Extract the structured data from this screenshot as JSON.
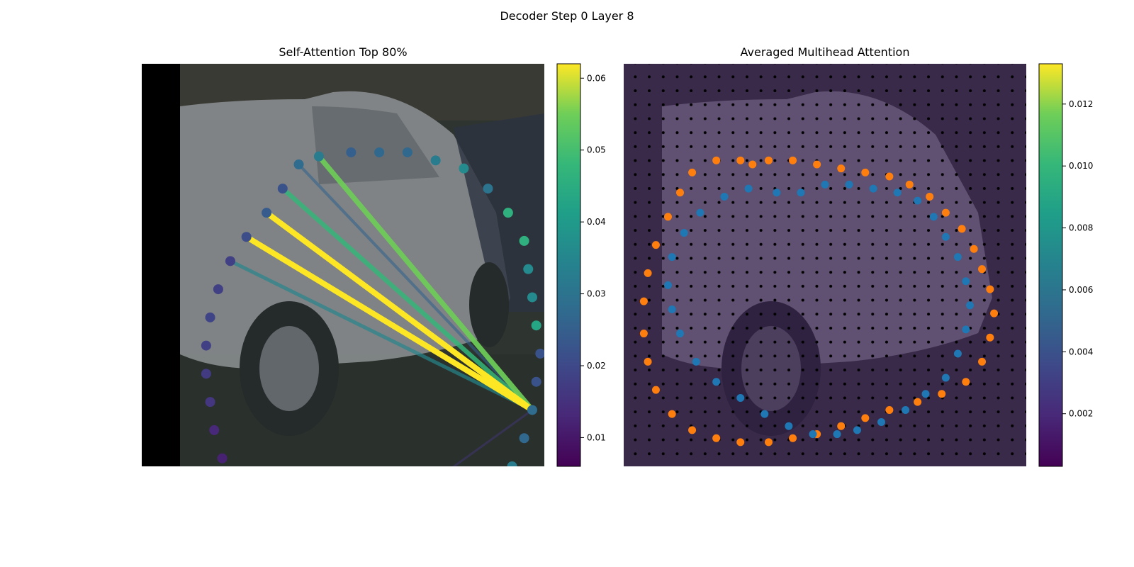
{
  "figure": {
    "title": "Decoder Step 0 Layer 8"
  },
  "chart_data": [
    {
      "type": "image-overlay",
      "title": "Self-Attention Top 80%",
      "colormap": "viridis",
      "colorbar": {
        "range": [
          0.006,
          0.062
        ],
        "ticks": [
          "0.01",
          "0.02",
          "0.03",
          "0.04",
          "0.05",
          "0.06"
        ]
      },
      "source_point": [
        97,
        86
      ],
      "points": [
        [
          44,
          23,
          0.032
        ],
        [
          39,
          25,
          0.028
        ],
        [
          52,
          22,
          0.025
        ],
        [
          59,
          22,
          0.027
        ],
        [
          66,
          22,
          0.027
        ],
        [
          73,
          24,
          0.032
        ],
        [
          80,
          26,
          0.036
        ],
        [
          86,
          31,
          0.03
        ],
        [
          91,
          37,
          0.046
        ],
        [
          95,
          44,
          0.046
        ],
        [
          96,
          51,
          0.036
        ],
        [
          97,
          58,
          0.036
        ],
        [
          98,
          65,
          0.043
        ],
        [
          99,
          72,
          0.022
        ],
        [
          98,
          79,
          0.022
        ],
        [
          97,
          86,
          0.028
        ],
        [
          95,
          93,
          0.027
        ],
        [
          92,
          100,
          0.032
        ],
        [
          87,
          106,
          0.038
        ],
        [
          81,
          111,
          0.042
        ],
        [
          74,
          114,
          0.054
        ],
        [
          68,
          116,
          0.048
        ],
        [
          61,
          117,
          0.04
        ],
        [
          54,
          117,
          0.017
        ],
        [
          47,
          116,
          0.017
        ],
        [
          40,
          115,
          0.016
        ],
        [
          34,
          113,
          0.019
        ],
        [
          28,
          110,
          0.015
        ],
        [
          23,
          105,
          0.013
        ],
        [
          20,
          98,
          0.012
        ],
        [
          18,
          91,
          0.013
        ],
        [
          17,
          84,
          0.016
        ],
        [
          16,
          77,
          0.017
        ],
        [
          16,
          70,
          0.018
        ],
        [
          17,
          63,
          0.019
        ],
        [
          19,
          56,
          0.018
        ],
        [
          22,
          49,
          0.018
        ],
        [
          26,
          43,
          0.021
        ],
        [
          31,
          37,
          0.024
        ],
        [
          35,
          31,
          0.022
        ]
      ],
      "attention_lines": [
        {
          "from": 0,
          "weight": 0.055
        },
        {
          "from": 39,
          "weight": 0.048
        },
        {
          "from": 38,
          "weight": 0.062
        },
        {
          "from": 37,
          "weight": 0.062
        },
        {
          "from": 36,
          "weight": 0.035
        },
        {
          "from": 1,
          "weight": 0.026
        },
        {
          "from": 23,
          "weight": 0.016
        }
      ]
    },
    {
      "type": "heatmap-overlay",
      "title": "Averaged Multihead Attention",
      "colormap": "viridis",
      "colorbar": {
        "range": [
          0.0003,
          0.0133
        ],
        "ticks": [
          "0.002",
          "0.004",
          "0.006",
          "0.008",
          "0.010",
          "0.012"
        ]
      },
      "grid_size": 28,
      "hot_cells": [
        [
          9,
          28,
          0.004
        ],
        [
          10,
          28,
          0.005
        ],
        [
          11,
          28,
          0.006
        ],
        [
          12,
          28,
          0.0055
        ],
        [
          9,
          29,
          0.0045
        ],
        [
          10,
          29,
          0.0075
        ],
        [
          11,
          29,
          0.013
        ],
        [
          12,
          29,
          0.0085
        ],
        [
          13,
          29,
          0.007
        ],
        [
          11,
          30,
          0.005
        ],
        [
          12,
          30,
          0.006
        ]
      ],
      "orange_points": [
        [
          32,
          25
        ],
        [
          36,
          24
        ],
        [
          42,
          24
        ],
        [
          48,
          25
        ],
        [
          54,
          26
        ],
        [
          60,
          27
        ],
        [
          66,
          28
        ],
        [
          71,
          30
        ],
        [
          76,
          33
        ],
        [
          80,
          37
        ],
        [
          84,
          41
        ],
        [
          87,
          46
        ],
        [
          89,
          51
        ],
        [
          91,
          56
        ],
        [
          92,
          62
        ],
        [
          91,
          68
        ],
        [
          89,
          74
        ],
        [
          85,
          79
        ],
        [
          79,
          82
        ],
        [
          73,
          84
        ],
        [
          66,
          86
        ],
        [
          60,
          88
        ],
        [
          54,
          90
        ],
        [
          48,
          92
        ],
        [
          42,
          93
        ],
        [
          36,
          94
        ],
        [
          29,
          94
        ],
        [
          23,
          93
        ],
        [
          17,
          91
        ],
        [
          12,
          87
        ],
        [
          8,
          81
        ],
        [
          6,
          74
        ],
        [
          5,
          67
        ],
        [
          5,
          59
        ],
        [
          6,
          52
        ],
        [
          8,
          45
        ],
        [
          11,
          38
        ],
        [
          14,
          32
        ],
        [
          17,
          27
        ],
        [
          23,
          24
        ],
        [
          29,
          24
        ]
      ],
      "blue_points": [
        [
          38,
          32
        ],
        [
          44,
          32
        ],
        [
          50,
          30
        ],
        [
          56,
          30
        ],
        [
          62,
          31
        ],
        [
          68,
          32
        ],
        [
          73,
          34
        ],
        [
          77,
          38
        ],
        [
          80,
          43
        ],
        [
          83,
          48
        ],
        [
          85,
          54
        ],
        [
          86,
          60
        ],
        [
          85,
          66
        ],
        [
          83,
          72
        ],
        [
          80,
          78
        ],
        [
          75,
          82
        ],
        [
          70,
          86
        ],
        [
          64,
          89
        ],
        [
          58,
          91
        ],
        [
          53,
          92
        ],
        [
          47,
          92
        ],
        [
          41,
          90
        ],
        [
          35,
          87
        ],
        [
          29,
          83
        ],
        [
          23,
          79
        ],
        [
          18,
          74
        ],
        [
          14,
          67
        ],
        [
          12,
          61
        ],
        [
          11,
          55
        ],
        [
          12,
          48
        ],
        [
          15,
          42
        ],
        [
          19,
          37
        ],
        [
          25,
          33
        ],
        [
          31,
          31
        ]
      ]
    }
  ]
}
